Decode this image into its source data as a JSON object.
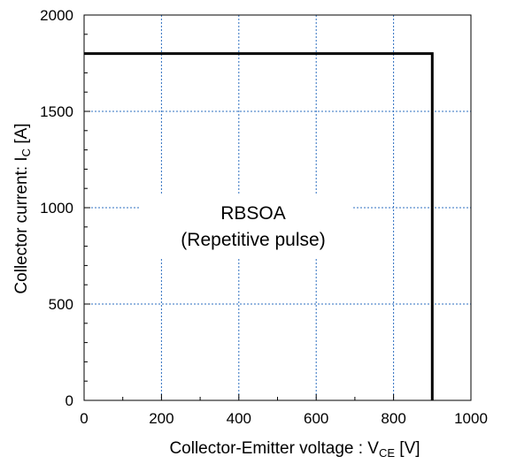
{
  "chart_data": {
    "type": "line",
    "title": "",
    "xlabel": {
      "prefix": "Collector-Emitter voltage : V",
      "sub": "CE",
      "suffix": " [V]"
    },
    "ylabel": {
      "prefix": "Collector current: I",
      "sub": "C",
      "suffix": " [A]"
    },
    "xlim": [
      0,
      1000
    ],
    "ylim": [
      0,
      2000
    ],
    "xticks": [
      0,
      200,
      400,
      600,
      800,
      1000
    ],
    "yticks": [
      0,
      500,
      1000,
      1500,
      2000
    ],
    "grid": true,
    "series": [
      {
        "name": "",
        "x": [
          0,
          900,
          900
        ],
        "y": [
          1800,
          1800,
          0
        ],
        "color": "#000000"
      }
    ],
    "annotations": [
      "RBSOA",
      "(Repetitive pulse)"
    ]
  }
}
